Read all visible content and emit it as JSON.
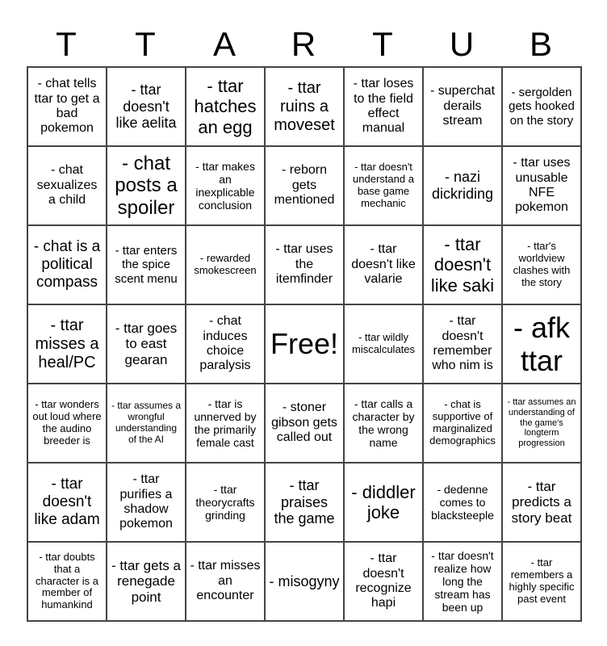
{
  "header": [
    "T",
    "T",
    "A",
    "R",
    "T",
    "U",
    "B"
  ],
  "cells": [
    [
      "- chat tells ttar to get a bad pokemon",
      "- ttar doesn't like aelita",
      "- ttar hatches an egg",
      "- ttar ruins a moveset",
      "- ttar loses to the field effect manual",
      "- superchat derails stream",
      "- sergolden gets hooked on the story"
    ],
    [
      "- chat sexualizes a child",
      "- chat posts a spoiler",
      "- ttar makes an inexplicable conclusion",
      "- reborn gets mentioned",
      "- ttar doesn't understand a base game mechanic",
      "- nazi dickriding",
      "- ttar uses unusable NFE pokemon"
    ],
    [
      "- chat is a political compass",
      "- ttar enters the spice scent menu",
      "- rewarded smokescreen",
      "- ttar uses the itemfinder",
      "- ttar doesn't like valarie",
      "- ttar doesn't like saki",
      "- ttar's worldview clashes with the story"
    ],
    [
      "- ttar misses a heal/PC",
      "- ttar goes to east gearan",
      "- chat induces choice paralysis",
      "Free!",
      "- ttar wildly miscalculates",
      "- ttar doesn't remember who nim is",
      "- afk ttar"
    ],
    [
      "- ttar wonders out loud where the audino breeder is",
      "- ttar assumes a wrongful understanding of the AI",
      "- ttar is unnerved by the primarily female cast",
      "- stoner gibson gets called out",
      "- ttar calls a character by the wrong name",
      "- chat is supportive of marginalized demographics",
      "- ttar assumes an understanding of the game's longterm progression"
    ],
    [
      "- ttar doesn't like adam",
      "- ttar purifies a shadow pokemon",
      "- ttar theorycrafts grinding",
      "- ttar praises the game",
      "- diddler joke",
      "- dedenne comes to blacksteeple",
      "- ttar predicts a story beat"
    ],
    [
      "- ttar doubts that a character is a member of humankind",
      "- ttar gets a renegade point",
      "- ttar misses an encounter",
      "- misogyny",
      "- ttar doesn't recognize hapi",
      "- ttar doesn't realize how long the stream has been up",
      "- ttar remembers a highly specific past event"
    ]
  ]
}
